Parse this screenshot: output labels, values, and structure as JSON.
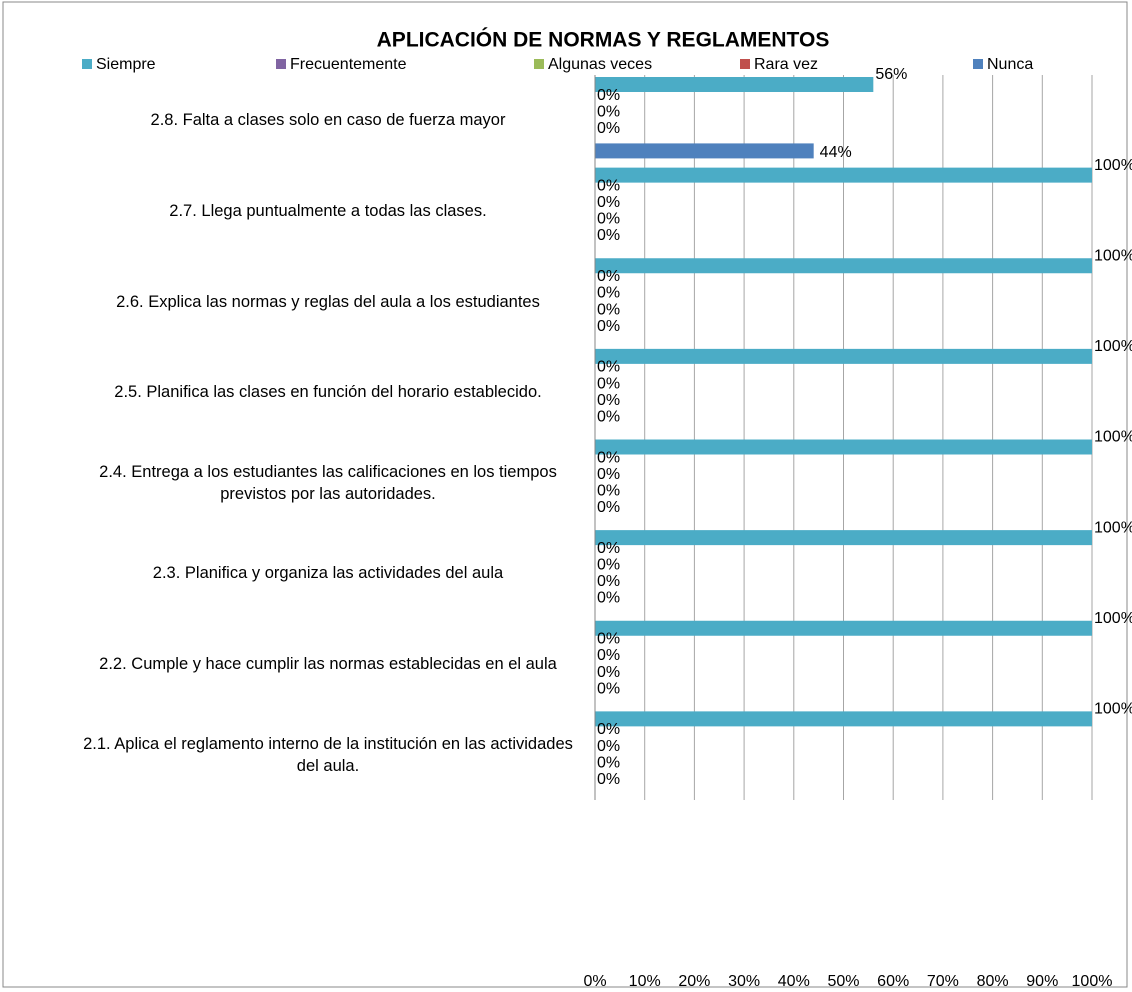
{
  "chart_data": {
    "type": "hbar",
    "title": "APLICACIÓN DE NORMAS Y REGLAMENTOS",
    "categories": [
      "2.8.  Falta a  clases solo en caso de fuerza mayor",
      "2.7.  Llega puntualmente a todas las clases.",
      "2.6.  Explica las normas y reglas del aula a los estudiantes",
      "2.5.  Planifica las clases en función del horario establecido.",
      "2.4.  Entrega a los estudiantes las calificaciones en los tiempos previstos por las autoridades.",
      "2.3.  Planifica y organiza las actividades del aula",
      "2.2.  Cumple y hace cumplir  las normas establecidas en el aula",
      "2.1.  Aplica el reglamento interno de la institución en las actividades del aula."
    ],
    "series": [
      {
        "name": "Siempre",
        "color": "#4bacc6",
        "values": [
          56,
          100,
          100,
          100,
          100,
          100,
          100,
          100
        ],
        "value_labels": [
          "56%",
          "100%",
          "100%",
          "100%",
          "100%",
          "100%",
          "100%",
          "100%"
        ]
      },
      {
        "name": "Frecuentemente",
        "color": "#8064a2",
        "values": [
          0,
          0,
          0,
          0,
          0,
          0,
          0,
          0
        ],
        "value_labels": [
          "0%",
          "0%",
          "0%",
          "0%",
          "0%",
          "0%",
          "0%",
          "0%"
        ]
      },
      {
        "name": "Algunas veces",
        "color": "#9bbb59",
        "values": [
          0,
          0,
          0,
          0,
          0,
          0,
          0,
          0
        ],
        "value_labels": [
          "0%",
          "0%",
          "0%",
          "0%",
          "0%",
          "0%",
          "0%",
          "0%"
        ]
      },
      {
        "name": "Rara vez",
        "color": "#c0504d",
        "values": [
          0,
          0,
          0,
          0,
          0,
          0,
          0,
          0
        ],
        "value_labels": [
          "0%",
          "0%",
          "0%",
          "0%",
          "0%",
          "0%",
          "0%",
          "0%"
        ]
      },
      {
        "name": "Nunca",
        "color": "#4f81bd",
        "values": [
          44,
          0,
          0,
          0,
          0,
          0,
          0,
          0
        ],
        "value_labels": [
          "44%",
          "0%",
          "0%",
          "0%",
          "0%",
          "0%",
          "0%",
          "0%"
        ]
      }
    ],
    "xlim": [
      0,
      100
    ],
    "xticks": [
      {
        "value": 0,
        "label": "0%"
      },
      {
        "value": 10,
        "label": "10%"
      },
      {
        "value": 20,
        "label": "20%"
      },
      {
        "value": 30,
        "label": "30%"
      },
      {
        "value": 40,
        "label": "40%"
      },
      {
        "value": 50,
        "label": "50%"
      },
      {
        "value": 60,
        "label": "60%"
      },
      {
        "value": 70,
        "label": "70%"
      },
      {
        "value": 80,
        "label": "80%"
      },
      {
        "value": 90,
        "label": "90%"
      },
      {
        "value": 100,
        "label": "100%"
      }
    ],
    "grid": true,
    "legend": "top"
  }
}
